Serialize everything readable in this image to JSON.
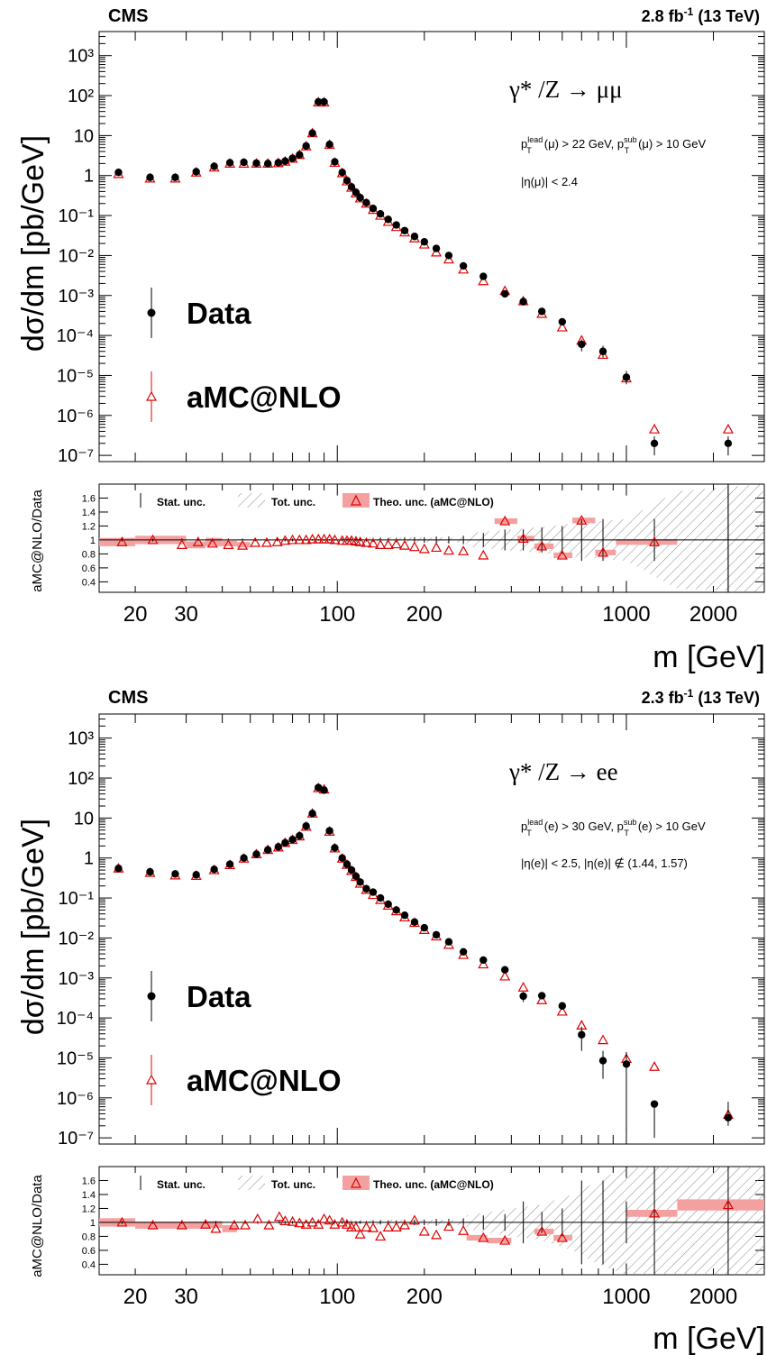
{
  "colors": {
    "data": "#000000",
    "mc": "#e00000",
    "band": "#f4a0a0",
    "hatch": "#888888"
  },
  "chart_data": [
    {
      "type": "scatter",
      "panel": "top",
      "experiment": "CMS",
      "luminosity": "2.8",
      "energy": "(13 TeV)",
      "process": "γ* /Z → μμ",
      "cut1_a": "p",
      "cut1_a_sup": "lead",
      "cut1_a_sub": "T",
      "cut1_b": "(μ) > 22 GeV, p",
      "cut1_b_sup": "sub",
      "cut1_b_sub": "T",
      "cut1_c": "(μ) > 10 GeV",
      "cut2": "|η(μ)| < 2.4",
      "ylabel": "dσ/dm [pb/GeV]",
      "xlabel": "m [GeV]",
      "ratio_ylabel": "aMC@NLO/Data",
      "legend": {
        "data": "Data",
        "mc": "aMC@NLO"
      },
      "ratio_legend": {
        "stat": "Stat. unc.",
        "tot": "Tot. unc.",
        "theo": "Theo. unc. (aMC@NLO)"
      },
      "xlim": [
        15,
        3000
      ],
      "ylim": [
        7e-08,
        4000
      ],
      "ratio_ylim": [
        0.25,
        1.8
      ],
      "x_scale": "log",
      "y_scale": "log",
      "x_ticklabels": [
        20,
        30,
        100,
        200,
        1000,
        2000
      ],
      "y_ticklabels": [
        "10³",
        "10²",
        "10",
        "1",
        "10⁻¹",
        "10⁻²",
        "10⁻³",
        "10⁻⁴",
        "10⁻⁵",
        "10⁻⁶",
        "10⁻⁷"
      ],
      "ratio_ticklabels": [
        "1.6",
        "1.4",
        "1.2",
        "1",
        "0.8",
        "0.6",
        "0.4"
      ],
      "x": [
        17.5,
        22.5,
        27.5,
        32.5,
        37.5,
        42.5,
        47.5,
        52.5,
        57.5,
        62.5,
        66,
        70,
        74,
        78,
        82,
        86,
        90,
        94,
        98,
        104,
        108,
        112,
        116,
        120,
        126,
        133,
        141,
        150,
        160,
        171,
        185,
        200,
        220,
        243,
        273,
        320,
        380,
        440,
        510,
        600,
        700,
        830,
        1000,
        1250,
        2250
      ],
      "data": [
        1.2,
        0.9,
        0.9,
        1.25,
        1.7,
        2.1,
        2.15,
        2.05,
        2.0,
        2.1,
        2.3,
        2.7,
        3.3,
        5.5,
        11.5,
        70,
        70,
        6.0,
        2.2,
        1.2,
        0.75,
        0.52,
        0.38,
        0.28,
        0.21,
        0.15,
        0.11,
        0.08,
        0.058,
        0.042,
        0.03,
        0.022,
        0.015,
        0.01,
        0.0055,
        0.003,
        0.0011,
        0.0007,
        0.0004,
        0.00022,
        6e-05,
        4e-05,
        9e-06,
        2e-07,
        2e-07
      ],
      "data_err_low": [
        1.1,
        0.83,
        0.83,
        1.15,
        1.6,
        2.0,
        2.05,
        1.95,
        1.9,
        2.0,
        2.2,
        2.6,
        3.2,
        5.3,
        11.0,
        67,
        67,
        5.7,
        2.1,
        1.15,
        0.72,
        0.5,
        0.36,
        0.27,
        0.2,
        0.14,
        0.105,
        0.076,
        0.055,
        0.04,
        0.028,
        0.02,
        0.014,
        0.009,
        0.005,
        0.0027,
        0.0009,
        0.0006,
        0.00034,
        0.00018,
        4e-05,
        2.8e-05,
        6e-06,
        1e-07,
        1e-07
      ],
      "data_err_high": [
        1.3,
        0.97,
        0.97,
        1.35,
        1.8,
        2.2,
        2.25,
        2.15,
        2.1,
        2.2,
        2.4,
        2.8,
        3.4,
        5.7,
        12.0,
        73,
        73,
        6.3,
        2.3,
        1.25,
        0.78,
        0.54,
        0.4,
        0.29,
        0.22,
        0.16,
        0.115,
        0.084,
        0.061,
        0.044,
        0.032,
        0.024,
        0.016,
        0.011,
        0.006,
        0.0033,
        0.0013,
        0.0008,
        0.00046,
        0.00026,
        8e-05,
        5.5e-05,
        1.3e-05,
        3e-07,
        3e-07
      ],
      "mc": [
        1.1,
        0.85,
        0.85,
        1.2,
        1.6,
        2.0,
        2.0,
        2.0,
        2.0,
        2.05,
        2.25,
        2.65,
        3.3,
        5.4,
        11.5,
        68,
        68,
        5.9,
        2.1,
        1.15,
        0.72,
        0.5,
        0.36,
        0.27,
        0.2,
        0.14,
        0.1,
        0.07,
        0.052,
        0.038,
        0.027,
        0.019,
        0.012,
        0.008,
        0.0045,
        0.0023,
        0.0013,
        0.00072,
        0.00035,
        0.00016,
        7.5e-05,
        3.3e-05,
        8.5e-06,
        4.5e-07,
        4.5e-07
      ],
      "mc_err": [
        0.1,
        0.08,
        0.08,
        0.1,
        0.15,
        0.18,
        0.18,
        0.18,
        0.18,
        0.18,
        0.2,
        0.2,
        0.3,
        0.5,
        1.0,
        5,
        5,
        0.5,
        0.2,
        0.1,
        0.06,
        0.04,
        0.03,
        0.02,
        0.02,
        0.01,
        0.008,
        0.006,
        0.004,
        0.003,
        0.002,
        0.0015,
        0.001,
        0.0007,
        0.0004,
        0.0002,
        0.00012,
        7e-05,
        3e-05,
        1.5e-05,
        1e-05,
        3e-06,
        2e-06,
        3e-07,
        3e-07
      ],
      "ratio": [
        0.97,
        1.0,
        0.93,
        0.97,
        0.95,
        0.93,
        0.92,
        0.96,
        0.96,
        0.97,
        0.99,
        1.0,
        1.0,
        1.0,
        1.01,
        1.01,
        1.01,
        1.01,
        1.0,
        0.99,
        0.99,
        0.99,
        0.98,
        0.97,
        0.96,
        0.95,
        0.93,
        0.93,
        0.94,
        0.92,
        0.9,
        0.87,
        0.89,
        0.85,
        0.84,
        0.78,
        1.27,
        1.02,
        0.91,
        0.78,
        1.28,
        0.82,
        0.97,
        null,
        null
      ],
      "ratio_x": [
        18,
        23,
        29,
        33,
        37,
        42,
        47,
        52,
        57,
        62,
        66,
        70,
        74,
        78,
        82,
        86,
        90,
        94,
        98,
        104,
        108,
        112,
        116,
        120,
        126,
        133,
        141,
        150,
        160,
        171,
        185,
        200,
        220,
        243,
        273,
        320,
        380,
        440,
        510,
        600,
        700,
        830,
        1250,
        2250,
        2250
      ],
      "ratio_stat": [
        0.02,
        0.02,
        0.02,
        0.02,
        0.02,
        0.02,
        0.02,
        0.02,
        0.02,
        0.02,
        0.02,
        0.02,
        0.01,
        0.01,
        0.01,
        0.01,
        0.01,
        0.01,
        0.01,
        0.02,
        0.02,
        0.02,
        0.02,
        0.02,
        0.02,
        0.03,
        0.03,
        0.03,
        0.03,
        0.04,
        0.04,
        0.04,
        0.05,
        0.05,
        0.06,
        0.1,
        0.15,
        0.15,
        0.18,
        0.2,
        0.3,
        0.3,
        0.3,
        0.8,
        0.8
      ],
      "ratio_band_bins": [
        [
          15,
          20
        ],
        [
          20,
          30
        ],
        [
          30,
          35
        ],
        [
          35,
          40
        ],
        [
          40,
          45
        ],
        [
          45,
          50
        ],
        [
          350,
          420
        ],
        [
          420,
          480
        ],
        [
          480,
          560
        ],
        [
          560,
          650
        ],
        [
          650,
          780
        ],
        [
          780,
          920
        ],
        [
          920,
          1500
        ]
      ],
      "ratio_band_vals": [
        0.97,
        1.0,
        0.93,
        0.97,
        0.95,
        0.93,
        1.27,
        1.02,
        0.91,
        0.78,
        1.28,
        0.82,
        0.97
      ],
      "ratio_band_err": [
        0.06,
        0.06,
        0.05,
        0.06,
        0.04,
        0.04,
        0.04,
        0.04,
        0.04,
        0.04,
        0.04,
        0.04,
        0.04
      ],
      "tot_unc_from": 280,
      "tot_unc": [
        [
          280,
          0.1
        ],
        [
          400,
          0.15
        ],
        [
          550,
          0.2
        ],
        [
          700,
          0.25
        ],
        [
          1000,
          0.3
        ],
        [
          1500,
          0.7
        ],
        [
          3000,
          0.8
        ]
      ]
    },
    {
      "type": "scatter",
      "panel": "bottom",
      "experiment": "CMS",
      "luminosity": "2.3",
      "energy": "(13 TeV)",
      "process": "γ* /Z → ee",
      "cut1_a": "p",
      "cut1_a_sup": "lead",
      "cut1_a_sub": "T",
      "cut1_b": "(e) > 30 GeV, p",
      "cut1_b_sup": "sub",
      "cut1_b_sub": "T",
      "cut1_c": "(e) > 10 GeV",
      "cut2": "|η(e)| < 2.5, |η(e)| ∉ (1.44, 1.57)",
      "ylabel": "dσ/dm [pb/GeV]",
      "xlabel": "m [GeV]",
      "ratio_ylabel": "aMC@NLO/Data",
      "legend": {
        "data": "Data",
        "mc": "aMC@NLO"
      },
      "ratio_legend": {
        "stat": "Stat. unc.",
        "tot": "Tot. unc.",
        "theo": "Theo. unc. (aMC@NLO)"
      },
      "xlim": [
        15,
        3000
      ],
      "ylim": [
        7e-08,
        4000
      ],
      "ratio_ylim": [
        0.25,
        1.8
      ],
      "x_scale": "log",
      "y_scale": "log",
      "x_ticklabels": [
        20,
        30,
        100,
        200,
        1000,
        2000
      ],
      "y_ticklabels": [
        "10³",
        "10²",
        "10",
        "1",
        "10⁻¹",
        "10⁻²",
        "10⁻³",
        "10⁻⁴",
        "10⁻⁵",
        "10⁻⁶",
        "10⁻⁷"
      ],
      "ratio_ticklabels": [
        "1.6",
        "1.4",
        "1.2",
        "1",
        "0.8",
        "0.6",
        "0.4"
      ],
      "x": [
        17.5,
        22.5,
        27.5,
        32.5,
        37.5,
        42.5,
        47.5,
        52.5,
        57.5,
        62.5,
        66,
        70,
        74,
        78,
        82,
        86,
        90,
        94,
        98,
        104,
        108,
        112,
        116,
        120,
        126,
        133,
        141,
        150,
        160,
        171,
        185,
        200,
        220,
        243,
        273,
        320,
        380,
        440,
        510,
        600,
        700,
        830,
        1000,
        1250,
        2250
      ],
      "data": [
        0.55,
        0.45,
        0.4,
        0.38,
        0.52,
        0.7,
        1.0,
        1.25,
        1.6,
        1.9,
        2.4,
        2.9,
        3.6,
        6.3,
        13,
        58,
        50,
        4.8,
        1.8,
        1.0,
        0.7,
        0.5,
        0.35,
        0.25,
        0.17,
        0.14,
        0.1,
        0.07,
        0.05,
        0.037,
        0.025,
        0.018,
        0.012,
        0.008,
        0.0045,
        0.0028,
        0.0016,
        0.00035,
        0.00036,
        0.0002,
        3.8e-05,
        8.5e-06,
        7e-06,
        7e-07,
        3.2e-07
      ],
      "data_err_low": [
        0.5,
        0.41,
        0.36,
        0.34,
        0.48,
        0.65,
        0.95,
        1.2,
        1.52,
        1.82,
        2.3,
        2.8,
        3.5,
        6.1,
        12.5,
        56,
        48,
        4.6,
        1.72,
        0.95,
        0.66,
        0.47,
        0.33,
        0.24,
        0.16,
        0.13,
        0.094,
        0.066,
        0.047,
        0.034,
        0.023,
        0.016,
        0.011,
        0.0072,
        0.004,
        0.0025,
        0.0013,
        0.00025,
        0.0003,
        0.00016,
        1.5e-05,
        3e-06,
        1.5e-07,
        1e-07,
        2e-07
      ],
      "data_err_high": [
        0.6,
        0.49,
        0.44,
        0.42,
        0.56,
        0.75,
        1.05,
        1.3,
        1.68,
        1.98,
        2.5,
        3.0,
        3.7,
        6.5,
        13.5,
        60,
        52,
        5.0,
        1.88,
        1.05,
        0.74,
        0.53,
        0.37,
        0.26,
        0.18,
        0.15,
        0.106,
        0.074,
        0.053,
        0.04,
        0.027,
        0.02,
        0.013,
        0.0088,
        0.005,
        0.0031,
        0.0019,
        0.00045,
        0.00042,
        0.00024,
        6e-05,
        1.5e-05,
        1.4e-05,
        8e-07,
        8e-07
      ],
      "mc": [
        0.55,
        0.43,
        0.37,
        0.36,
        0.5,
        0.67,
        0.97,
        1.25,
        1.6,
        1.85,
        2.4,
        2.85,
        3.5,
        6.1,
        13,
        56,
        52,
        4.6,
        1.75,
        0.97,
        0.68,
        0.48,
        0.34,
        0.23,
        0.16,
        0.12,
        0.09,
        0.065,
        0.047,
        0.033,
        0.024,
        0.016,
        0.011,
        0.0068,
        0.0038,
        0.0022,
        0.0011,
        0.00058,
        0.00028,
        0.000145,
        6.5e-05,
        2.8e-05,
        9.5e-06,
        6e-06,
        3.8e-07
      ],
      "mc_err": [
        0.04,
        0.03,
        0.03,
        0.03,
        0.04,
        0.05,
        0.07,
        0.09,
        0.1,
        0.12,
        0.15,
        0.2,
        0.25,
        0.4,
        0.9,
        4,
        4,
        0.35,
        0.12,
        0.07,
        0.05,
        0.03,
        0.02,
        0.015,
        0.01,
        0.008,
        0.006,
        0.004,
        0.003,
        0.002,
        0.0015,
        0.001,
        0.0007,
        0.0004,
        0.00025,
        0.00015,
        7e-05,
        4e-05,
        2e-05,
        1e-05,
        5e-06,
        2e-06,
        7e-07,
        5e-07,
        4e-08
      ],
      "ratio": [
        1.0,
        0.96,
        0.96,
        0.97,
        0.91,
        0.96,
        0.96,
        1.05,
        0.96,
        1.08,
        1.02,
        1.01,
        0.99,
        0.97,
        1.0,
        0.97,
        1.05,
        1.03,
        0.97,
        1.0,
        0.97,
        0.93,
        0.93,
        0.83,
        0.93,
        0.92,
        0.8,
        0.93,
        0.93,
        0.96,
        1.03,
        0.87,
        0.82,
        0.94,
        0.88,
        0.78,
        0.74,
        null,
        0.87,
        0.78,
        null,
        null,
        null,
        1.13,
        1.25
      ],
      "ratio_x": [
        18,
        23,
        29,
        35,
        38,
        44,
        48,
        53,
        58,
        63,
        66,
        70,
        74,
        78,
        82,
        86,
        90,
        94,
        98,
        104,
        108,
        112,
        116,
        120,
        126,
        133,
        141,
        150,
        160,
        171,
        185,
        200,
        220,
        243,
        273,
        320,
        380,
        440,
        510,
        600,
        700,
        830,
        1000,
        1250,
        2250
      ],
      "ratio_stat": [
        0.02,
        0.02,
        0.02,
        0.02,
        0.02,
        0.02,
        0.02,
        0.02,
        0.02,
        0.02,
        0.02,
        0.02,
        0.01,
        0.01,
        0.01,
        0.01,
        0.01,
        0.01,
        0.01,
        0.02,
        0.02,
        0.02,
        0.02,
        0.02,
        0.02,
        0.03,
        0.03,
        0.03,
        0.03,
        0.04,
        0.04,
        0.04,
        0.05,
        0.05,
        0.06,
        0.1,
        0.12,
        0.3,
        0.15,
        0.2,
        0.6,
        0.6,
        0.3,
        0.9,
        0.9
      ],
      "ratio_band_bins": [
        [
          15,
          20
        ],
        [
          20,
          30
        ],
        [
          30,
          35
        ],
        [
          35,
          40
        ],
        [
          40,
          45
        ],
        [
          280,
          330
        ],
        [
          330,
          400
        ],
        [
          480,
          560
        ],
        [
          560,
          650
        ],
        [
          1000,
          1500
        ],
        [
          1500,
          3000
        ]
      ],
      "ratio_band_vals": [
        1.0,
        0.96,
        0.96,
        0.97,
        0.91,
        0.78,
        0.74,
        0.87,
        0.78,
        1.13,
        1.25
      ],
      "ratio_band_err": [
        0.06,
        0.05,
        0.05,
        0.05,
        0.05,
        0.04,
        0.04,
        0.04,
        0.04,
        0.05,
        0.08
      ],
      "tot_unc_from": 280,
      "tot_unc": [
        [
          280,
          0.1
        ],
        [
          400,
          0.2
        ],
        [
          500,
          0.25
        ],
        [
          650,
          0.4
        ],
        [
          800,
          0.6
        ],
        [
          1000,
          0.8
        ],
        [
          3000,
          0.8
        ]
      ]
    }
  ]
}
